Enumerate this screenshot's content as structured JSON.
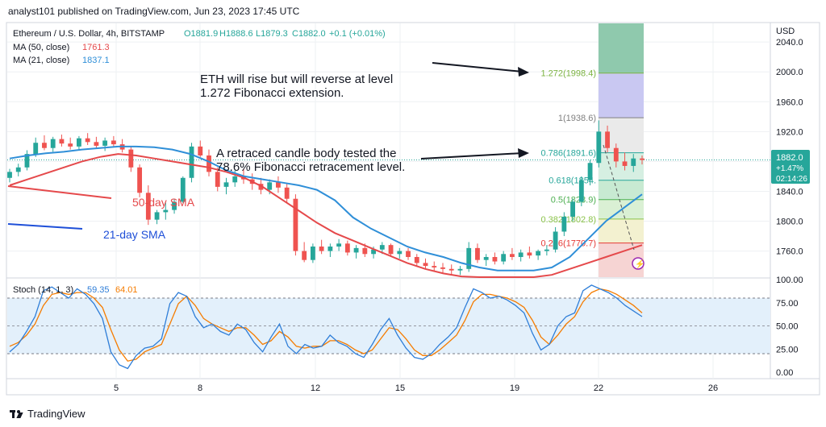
{
  "header": {
    "publisher_line": "analyst101 published on TradingView.com, Jun 23, 2023 17:45 UTC"
  },
  "footer": {
    "brand": "TradingView"
  },
  "colors": {
    "up": "#26a69a",
    "down": "#ef5350",
    "ma50": "#e5494b",
    "ma21": "#2f8fd8",
    "stoch_k": "#2f7ed8",
    "stoch_d": "#f57c00",
    "stoch_band": "#e3f0fb",
    "grid": "#eef0f3"
  },
  "chart_data": {
    "type": "candlestick",
    "symbol_line": {
      "name": "Ethereum / U.S. Dollar, 4h, BITSTAMP",
      "open": "O1881.9",
      "high": "H1888.6",
      "low": "L1879.3",
      "close": "C1882.0",
      "change": "+0.1 (+0.01%)"
    },
    "ma_legend": [
      {
        "label": "MA (50, close)",
        "value": "1761.3",
        "color": "#e5494b"
      },
      {
        "label": "MA (21, close)",
        "value": "1837.1",
        "color": "#2f8fd8"
      }
    ],
    "currency": "USD",
    "price_ticks": [
      "2040.0",
      "2000.0",
      "1960.0",
      "1920.0",
      "1880.0",
      "1840.0",
      "1800.0",
      "1760.0"
    ],
    "price_ylim": [
      1725,
      2065
    ],
    "x_ticks": [
      "5",
      "8",
      "12",
      "15",
      "19",
      "22",
      "26"
    ],
    "last_price": {
      "price": "1882.0",
      "change": "+1.47%",
      "countdown": "02:14:26"
    },
    "candles": [
      [
        1858,
        1870,
        1852,
        1866
      ],
      [
        1866,
        1877,
        1860,
        1872
      ],
      [
        1872,
        1895,
        1868,
        1890
      ],
      [
        1890,
        1912,
        1886,
        1905
      ],
      [
        1905,
        1915,
        1895,
        1898
      ],
      [
        1898,
        1913,
        1893,
        1910
      ],
      [
        1910,
        1916,
        1900,
        1904
      ],
      [
        1904,
        1912,
        1896,
        1900
      ],
      [
        1900,
        1914,
        1896,
        1911
      ],
      [
        1911,
        1918,
        1902,
        1906
      ],
      [
        1906,
        1913,
        1898,
        1901
      ],
      [
        1901,
        1912,
        1894,
        1908
      ],
      [
        1908,
        1914,
        1900,
        1903
      ],
      [
        1903,
        1910,
        1892,
        1896
      ],
      [
        1896,
        1900,
        1866,
        1872
      ],
      [
        1872,
        1876,
        1832,
        1838
      ],
      [
        1838,
        1848,
        1795,
        1802
      ],
      [
        1802,
        1815,
        1796,
        1812
      ],
      [
        1812,
        1825,
        1802,
        1815
      ],
      [
        1815,
        1830,
        1810,
        1826
      ],
      [
        1826,
        1860,
        1824,
        1858
      ],
      [
        1858,
        1905,
        1852,
        1900
      ],
      [
        1900,
        1908,
        1886,
        1888
      ],
      [
        1888,
        1896,
        1860,
        1866
      ],
      [
        1866,
        1872,
        1840,
        1846
      ],
      [
        1846,
        1858,
        1836,
        1852
      ],
      [
        1852,
        1868,
        1846,
        1860
      ],
      [
        1860,
        1870,
        1850,
        1856
      ],
      [
        1856,
        1864,
        1842,
        1850
      ],
      [
        1850,
        1858,
        1836,
        1842
      ],
      [
        1842,
        1856,
        1836,
        1852
      ],
      [
        1852,
        1860,
        1838,
        1845
      ],
      [
        1845,
        1850,
        1824,
        1830
      ],
      [
        1830,
        1836,
        1754,
        1760
      ],
      [
        1760,
        1772,
        1745,
        1748
      ],
      [
        1748,
        1770,
        1744,
        1766
      ],
      [
        1766,
        1775,
        1756,
        1760
      ],
      [
        1760,
        1770,
        1752,
        1766
      ],
      [
        1766,
        1776,
        1760,
        1770
      ],
      [
        1770,
        1774,
        1754,
        1758
      ],
      [
        1758,
        1768,
        1750,
        1764
      ],
      [
        1764,
        1770,
        1752,
        1756
      ],
      [
        1756,
        1766,
        1750,
        1762
      ],
      [
        1762,
        1772,
        1756,
        1768
      ],
      [
        1768,
        1770,
        1752,
        1756
      ],
      [
        1756,
        1764,
        1750,
        1760
      ],
      [
        1760,
        1764,
        1748,
        1752
      ],
      [
        1752,
        1756,
        1740,
        1744
      ],
      [
        1744,
        1750,
        1736,
        1740
      ],
      [
        1740,
        1746,
        1732,
        1738
      ],
      [
        1738,
        1744,
        1730,
        1736
      ],
      [
        1736,
        1742,
        1728,
        1734
      ],
      [
        1734,
        1740,
        1728,
        1736
      ],
      [
        1736,
        1772,
        1732,
        1764
      ],
      [
        1764,
        1770,
        1744,
        1748
      ],
      [
        1748,
        1756,
        1740,
        1752
      ],
      [
        1752,
        1758,
        1742,
        1746
      ],
      [
        1746,
        1760,
        1742,
        1756
      ],
      [
        1756,
        1764,
        1748,
        1752
      ],
      [
        1752,
        1762,
        1746,
        1758
      ],
      [
        1758,
        1766,
        1750,
        1754
      ],
      [
        1754,
        1762,
        1748,
        1760
      ],
      [
        1760,
        1768,
        1754,
        1762
      ],
      [
        1762,
        1792,
        1758,
        1786
      ],
      [
        1786,
        1812,
        1780,
        1806
      ],
      [
        1806,
        1830,
        1800,
        1826
      ],
      [
        1826,
        1860,
        1820,
        1855
      ],
      [
        1855,
        1882,
        1848,
        1878
      ],
      [
        1878,
        1935,
        1872,
        1920
      ],
      [
        1920,
        1928,
        1892,
        1898
      ],
      [
        1898,
        1904,
        1872,
        1880
      ],
      [
        1880,
        1892,
        1868,
        1874
      ],
      [
        1874,
        1890,
        1866,
        1884
      ],
      [
        1884,
        1888,
        1876,
        1882
      ]
    ],
    "ma21_path": [
      1884,
      1888,
      1891,
      1893,
      1896,
      1898,
      1900,
      1900,
      1899,
      1896,
      1890,
      1880,
      1868,
      1860,
      1856,
      1852,
      1848,
      1842,
      1828,
      1805,
      1790,
      1778,
      1766,
      1758,
      1752,
      1744,
      1738,
      1734,
      1734,
      1734,
      1738,
      1752,
      1776,
      1800,
      1818,
      1836
    ],
    "ma50_path": [
      1848,
      1856,
      1864,
      1872,
      1880,
      1886,
      1890,
      1888,
      1884,
      1880,
      1876,
      1872,
      1866,
      1858,
      1846,
      1830,
      1814,
      1798,
      1784,
      1774,
      1764,
      1754,
      1744,
      1736,
      1730,
      1726,
      1724,
      1722,
      1722,
      1724,
      1728,
      1736,
      1744,
      1752,
      1760,
      1768
    ],
    "stoch": {
      "label": "Stoch (14, 1, 3)",
      "k_value": "59.35",
      "d_value": "64.01",
      "ticks": [
        "100.00",
        "75.00",
        "50.00",
        "25.00",
        "0.00"
      ],
      "band": [
        20,
        80
      ],
      "k": [
        22,
        30,
        44,
        60,
        88,
        92,
        86,
        80,
        90,
        84,
        74,
        58,
        22,
        8,
        4,
        18,
        26,
        28,
        36,
        74,
        86,
        82,
        60,
        48,
        52,
        44,
        40,
        52,
        46,
        32,
        22,
        38,
        52,
        28,
        20,
        30,
        26,
        28,
        40,
        32,
        28,
        20,
        16,
        30,
        46,
        58,
        40,
        26,
        16,
        14,
        20,
        30,
        38,
        48,
        70,
        90,
        86,
        80,
        82,
        78,
        72,
        64,
        42,
        24,
        30,
        50,
        60,
        64,
        88,
        94,
        90,
        86,
        80,
        72,
        66,
        60
      ],
      "d": [
        28,
        32,
        40,
        52,
        72,
        84,
        86,
        84,
        86,
        86,
        80,
        70,
        46,
        24,
        12,
        14,
        22,
        26,
        30,
        52,
        74,
        82,
        72,
        58,
        52,
        48,
        44,
        48,
        48,
        40,
        30,
        34,
        44,
        38,
        28,
        26,
        28,
        28,
        34,
        34,
        30,
        24,
        20,
        24,
        36,
        48,
        46,
        36,
        24,
        18,
        18,
        24,
        32,
        40,
        56,
        76,
        84,
        84,
        82,
        80,
        76,
        70,
        56,
        38,
        30,
        40,
        52,
        60,
        76,
        86,
        90,
        88,
        84,
        78,
        72,
        64
      ]
    },
    "fibonacci": [
      {
        "label": "1.272(1998.4)",
        "price": 1998.4
      },
      {
        "label": "1(1938.6)",
        "price": 1938.6
      },
      {
        "label": "0.786(1891.6)",
        "price": 1891.6
      },
      {
        "label": "0.618(1854.",
        "price": 1854.8
      },
      {
        "label": "0.5(1828.9)",
        "price": 1828.9
      },
      {
        "label": "0.382(1802.8)",
        "price": 1802.8
      },
      {
        "label": "0.236(1770.7)",
        "price": 1770.7
      }
    ],
    "annotations": {
      "eth_text_1": "ETH  will rise but will reverse at level",
      "eth_text_2": "1.272 Fibonacci extension.",
      "retrace_text_1": "A retraced candle body tested the",
      "retrace_text_2": "78.6% Fibonacci retracement level.",
      "sma50_label": "50-day SMA",
      "sma21_label": "21-day SMA"
    }
  }
}
